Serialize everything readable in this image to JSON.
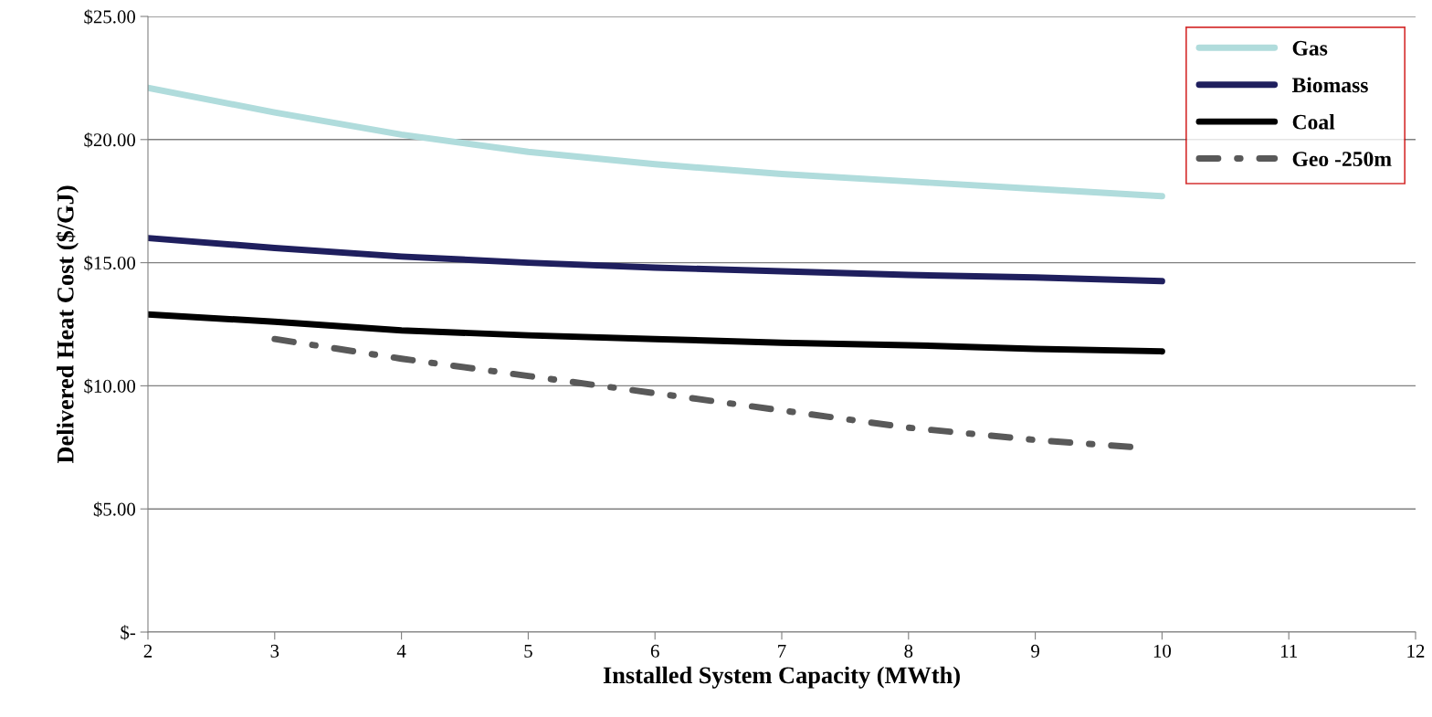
{
  "chart_data": {
    "type": "line",
    "xlabel": "Installed System Capacity (MWth)",
    "ylabel": "Delivered Heat Cost ($/GJ)",
    "x": [
      2,
      3,
      4,
      5,
      6,
      7,
      8,
      9,
      10
    ],
    "series": [
      {
        "name": "Gas",
        "color": "#b0dcdc",
        "values": [
          22.1,
          21.1,
          20.2,
          19.5,
          19.0,
          18.6,
          18.3,
          18.0,
          17.7
        ]
      },
      {
        "name": "Biomass",
        "color": "#1f1f5e",
        "values": [
          16.0,
          15.6,
          15.25,
          15.0,
          14.8,
          14.65,
          14.5,
          14.4,
          14.25
        ]
      },
      {
        "name": "Coal",
        "color": "#000000",
        "values": [
          12.9,
          12.6,
          12.25,
          12.05,
          11.9,
          11.75,
          11.65,
          11.5,
          11.4
        ]
      },
      {
        "name": "Geo -250m",
        "color": "#595959",
        "line_style": "dashdot",
        "x": [
          3,
          4,
          5,
          6,
          7,
          8,
          9,
          9.8
        ],
        "values": [
          11.9,
          11.1,
          10.4,
          9.7,
          9.0,
          8.3,
          7.8,
          7.5
        ]
      }
    ],
    "xlim": [
      2,
      12
    ],
    "xticks": [
      2,
      3,
      4,
      5,
      6,
      7,
      8,
      9,
      10,
      11,
      12
    ],
    "ylim": [
      0,
      25
    ],
    "yticks": [
      {
        "value": 0,
        "label": "$-"
      },
      {
        "value": 5,
        "label": "$5.00"
      },
      {
        "value": 10,
        "label": "$10.00"
      },
      {
        "value": 15,
        "label": "$15.00"
      },
      {
        "value": 20,
        "label": "$20.00"
      },
      {
        "value": 25,
        "label": "$25.00"
      }
    ],
    "grid": "y",
    "legend": "top right",
    "marker": "none"
  }
}
